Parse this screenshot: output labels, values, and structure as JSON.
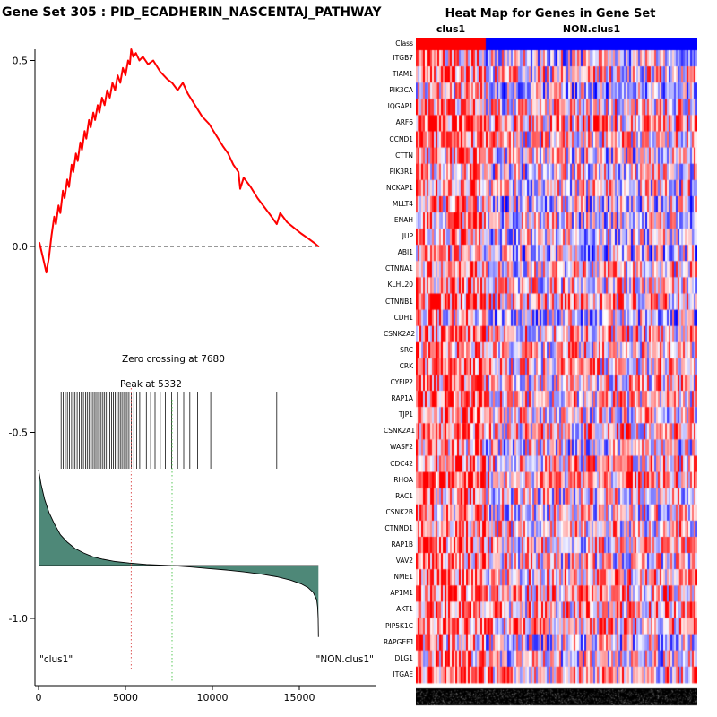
{
  "chart_data": [
    {
      "type": "line",
      "title": "Gene Set  305 : PID_ECADHERIN_NASCENTAJ_PATHWAY",
      "xlim": [
        0,
        18300
      ],
      "ylim": [
        -1.1,
        0.6
      ],
      "x_ticks": [
        0,
        5000,
        10000,
        15000
      ],
      "y_ticks": [
        0.5,
        0.0,
        -0.5,
        -1.0
      ],
      "y_tick_labels": [
        "0.5",
        "0.0",
        "-0.5",
        "-1.0"
      ],
      "peak": {
        "x": 5332,
        "label": "Peak at 5332"
      },
      "zero_crossing": {
        "x": 7680,
        "label": "Zero crossing at 7680"
      },
      "group_labels": {
        "left": "\"clus1\"",
        "right": "\"NON.clus1\""
      },
      "colors": {
        "curve": "#ff0000",
        "area": "#4e8878",
        "peak_line": "#e06666",
        "zero_line": "#66cc66",
        "hits": "#111111",
        "zero_dash": "#333333"
      },
      "series": [
        {
          "name": "running_enrichment_score",
          "points": [
            [
              50,
              0.01
            ],
            [
              250,
              -0.03
            ],
            [
              450,
              -0.07
            ],
            [
              600,
              -0.03
            ],
            [
              750,
              0.03
            ],
            [
              900,
              0.08
            ],
            [
              1000,
              0.06
            ],
            [
              1150,
              0.11
            ],
            [
              1250,
              0.09
            ],
            [
              1400,
              0.15
            ],
            [
              1500,
              0.13
            ],
            [
              1650,
              0.18
            ],
            [
              1750,
              0.16
            ],
            [
              1900,
              0.22
            ],
            [
              2000,
              0.2
            ],
            [
              2150,
              0.25
            ],
            [
              2250,
              0.23
            ],
            [
              2400,
              0.28
            ],
            [
              2500,
              0.26
            ],
            [
              2650,
              0.31
            ],
            [
              2750,
              0.29
            ],
            [
              2900,
              0.34
            ],
            [
              3000,
              0.32
            ],
            [
              3150,
              0.36
            ],
            [
              3250,
              0.34
            ],
            [
              3400,
              0.38
            ],
            [
              3500,
              0.36
            ],
            [
              3650,
              0.4
            ],
            [
              3800,
              0.38
            ],
            [
              3950,
              0.42
            ],
            [
              4100,
              0.4
            ],
            [
              4250,
              0.44
            ],
            [
              4400,
              0.42
            ],
            [
              4550,
              0.46
            ],
            [
              4700,
              0.44
            ],
            [
              4850,
              0.48
            ],
            [
              5000,
              0.46
            ],
            [
              5150,
              0.5
            ],
            [
              5250,
              0.49
            ],
            [
              5332,
              0.53
            ],
            [
              5450,
              0.51
            ],
            [
              5600,
              0.52
            ],
            [
              5800,
              0.5
            ],
            [
              6000,
              0.51
            ],
            [
              6300,
              0.49
            ],
            [
              6600,
              0.5
            ],
            [
              7000,
              0.47
            ],
            [
              7400,
              0.45
            ],
            [
              7680,
              0.44
            ],
            [
              8000,
              0.42
            ],
            [
              8300,
              0.44
            ],
            [
              8600,
              0.41
            ],
            [
              9000,
              0.38
            ],
            [
              9400,
              0.35
            ],
            [
              9800,
              0.33
            ],
            [
              10200,
              0.3
            ],
            [
              10600,
              0.27
            ],
            [
              10900,
              0.25
            ],
            [
              11200,
              0.22
            ],
            [
              11500,
              0.2
            ],
            [
              11600,
              0.155
            ],
            [
              11800,
              0.185
            ],
            [
              12200,
              0.16
            ],
            [
              12600,
              0.13
            ],
            [
              13000,
              0.105
            ],
            [
              13400,
              0.08
            ],
            [
              13700,
              0.06
            ],
            [
              13900,
              0.09
            ],
            [
              14300,
              0.065
            ],
            [
              14700,
              0.05
            ],
            [
              15100,
              0.035
            ],
            [
              15500,
              0.022
            ],
            [
              15900,
              0.008
            ],
            [
              16100,
              0.0
            ]
          ]
        },
        {
          "name": "ranked_list_metric",
          "baseline": -0.858,
          "points": [
            [
              0,
              -0.6
            ],
            [
              150,
              -0.64
            ],
            [
              350,
              -0.68
            ],
            [
              600,
              -0.715
            ],
            [
              900,
              -0.745
            ],
            [
              1250,
              -0.775
            ],
            [
              1650,
              -0.795
            ],
            [
              2100,
              -0.812
            ],
            [
              2600,
              -0.824
            ],
            [
              3100,
              -0.834
            ],
            [
              3700,
              -0.841
            ],
            [
              4400,
              -0.847
            ],
            [
              5200,
              -0.851
            ],
            [
              6200,
              -0.855
            ],
            [
              7680,
              -0.858
            ],
            [
              8800,
              -0.862
            ],
            [
              9800,
              -0.866
            ],
            [
              10800,
              -0.87
            ],
            [
              11800,
              -0.875
            ],
            [
              12800,
              -0.881
            ],
            [
              13700,
              -0.888
            ],
            [
              14500,
              -0.897
            ],
            [
              15100,
              -0.907
            ],
            [
              15500,
              -0.917
            ],
            [
              15800,
              -0.93
            ],
            [
              16000,
              -0.95
            ],
            [
              16050,
              -0.97
            ],
            [
              16080,
              -1.0
            ],
            [
              16100,
              -1.05
            ]
          ]
        }
      ],
      "hits": [
        1300,
        1420,
        1540,
        1660,
        1780,
        1900,
        2000,
        2100,
        2220,
        2340,
        2460,
        2580,
        2700,
        2800,
        2900,
        3000,
        3100,
        3200,
        3300,
        3400,
        3500,
        3600,
        3700,
        3800,
        3900,
        4000,
        4100,
        4200,
        4300,
        4400,
        4500,
        4600,
        4700,
        4800,
        4900,
        5000,
        5100,
        5200,
        5332,
        5480,
        5650,
        5820,
        6000,
        6200,
        6450,
        6700,
        7000,
        7300,
        7650,
        8000,
        8350,
        8700,
        9150,
        9900,
        13700
      ]
    },
    {
      "type": "heatmap",
      "title": "Heat Map for Genes in Gene Set",
      "class_row": {
        "label": "Class",
        "groups": [
          {
            "name": "clus1",
            "color": "#ff0000",
            "fraction": 0.25
          },
          {
            "name": "NON.clus1",
            "color": "#0000ff",
            "fraction": 0.75
          }
        ]
      },
      "rows": [
        "ITGB7",
        "TIAM1",
        "PIK3CA",
        "IQGAP1",
        "ARF6",
        "CCND1",
        "CTTN",
        "PIK3R1",
        "NCKAP1",
        "MLLT4",
        "ENAH",
        "JUP",
        "ABI1",
        "CTNNA1",
        "KLHL20",
        "CTNNB1",
        "CDH1",
        "CSNK2A2",
        "SRC",
        "CRK",
        "CYFIP2",
        "RAP1A",
        "TJP1",
        "CSNK2A1",
        "WASF2",
        "CDC42",
        "RHOA",
        "RAC1",
        "CSNK2B",
        "CTNND1",
        "RAP1B",
        "VAV2",
        "NME1",
        "AP1M1",
        "AKT1",
        "PIP5K1C",
        "RAPGEF1",
        "DLG1",
        "ITGAE"
      ],
      "colormap": {
        "high": "#ff0000",
        "mid": "#ffffff",
        "low": "#0000ff"
      }
    }
  ]
}
